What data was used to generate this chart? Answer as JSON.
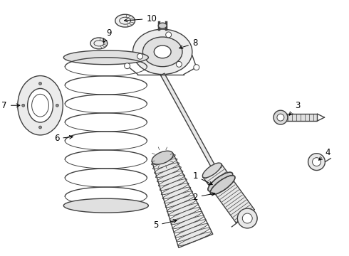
{
  "background_color": "#ffffff",
  "line_color": "#404040",
  "label_color": "#000000",
  "fig_width": 4.9,
  "fig_height": 3.6,
  "dpi": 100
}
